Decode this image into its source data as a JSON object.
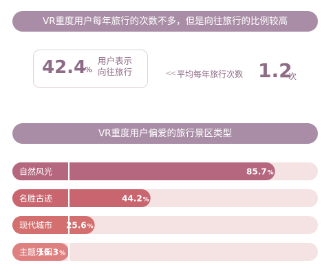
{
  "banner1": "VR重度用户每年旅行的次数不多，但是向往旅行的比例较高",
  "stat1": {
    "value": "42.4",
    "unit": "%",
    "label_line1": "用户表示",
    "label_line2": "向往旅行"
  },
  "stat2": {
    "arrow": "<<",
    "label": "平均每年旅行次数",
    "value": "1.2",
    "unit": "次"
  },
  "banner2": "VR重度用户偏爱的旅行景区类型",
  "chart_data": {
    "type": "bar",
    "orientation": "horizontal",
    "categories": [
      "自然风光",
      "名胜古迹",
      "现代城市",
      "主题乐园"
    ],
    "values": [
      85.7,
      44.2,
      25.6,
      16.3
    ],
    "value_labels": [
      "85.7",
      "44.2",
      "25.6",
      "16.3"
    ],
    "unit": "%",
    "xlim": [
      0,
      100
    ],
    "colors": [
      "#b4677f",
      "#c9656e",
      "#d3706f",
      "#df8080"
    ],
    "track_color": "#f5e2e3"
  }
}
